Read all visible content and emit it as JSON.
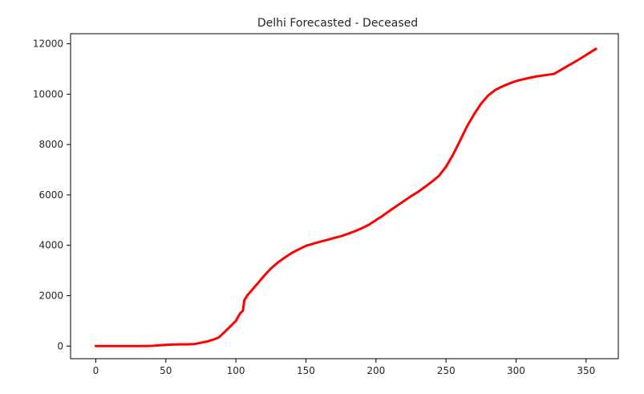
{
  "chart_data": {
    "type": "line",
    "title": "Delhi Forecasted - Deceased",
    "xlabel": "",
    "ylabel": "",
    "xlim": [
      -18,
      373
    ],
    "ylim": [
      -500,
      12400
    ],
    "xticks": [
      0,
      50,
      100,
      150,
      200,
      250,
      300,
      350
    ],
    "yticks": [
      0,
      2000,
      4000,
      6000,
      8000,
      10000,
      12000
    ],
    "grid": false,
    "series": [
      {
        "color": "#ff0000",
        "x": [
          0,
          10,
          20,
          30,
          35,
          40,
          45,
          50,
          55,
          60,
          65,
          70,
          75,
          80,
          85,
          88,
          92,
          96,
          100,
          103,
          105,
          106,
          108,
          112,
          116,
          120,
          125,
          130,
          135,
          140,
          145,
          150,
          155,
          160,
          165,
          170,
          175,
          180,
          185,
          190,
          195,
          200,
          205,
          210,
          215,
          220,
          225,
          230,
          235,
          240,
          245,
          250,
          255,
          260,
          265,
          270,
          275,
          280,
          285,
          290,
          295,
          300,
          305,
          310,
          315,
          320,
          327,
          335,
          345,
          357
        ],
        "values": [
          0,
          0,
          0,
          0,
          0,
          10,
          30,
          50,
          60,
          70,
          70,
          80,
          130,
          190,
          280,
          350,
          560,
          780,
          1000,
          1300,
          1400,
          1820,
          2000,
          2260,
          2520,
          2780,
          3080,
          3320,
          3520,
          3700,
          3840,
          3980,
          4060,
          4140,
          4210,
          4290,
          4360,
          4460,
          4560,
          4680,
          4820,
          5000,
          5180,
          5380,
          5570,
          5760,
          5950,
          6120,
          6320,
          6530,
          6760,
          7120,
          7600,
          8150,
          8720,
          9200,
          9620,
          9940,
          10160,
          10300,
          10420,
          10520,
          10590,
          10650,
          10710,
          10750,
          10800,
          11060,
          11380,
          11800
        ]
      }
    ]
  }
}
